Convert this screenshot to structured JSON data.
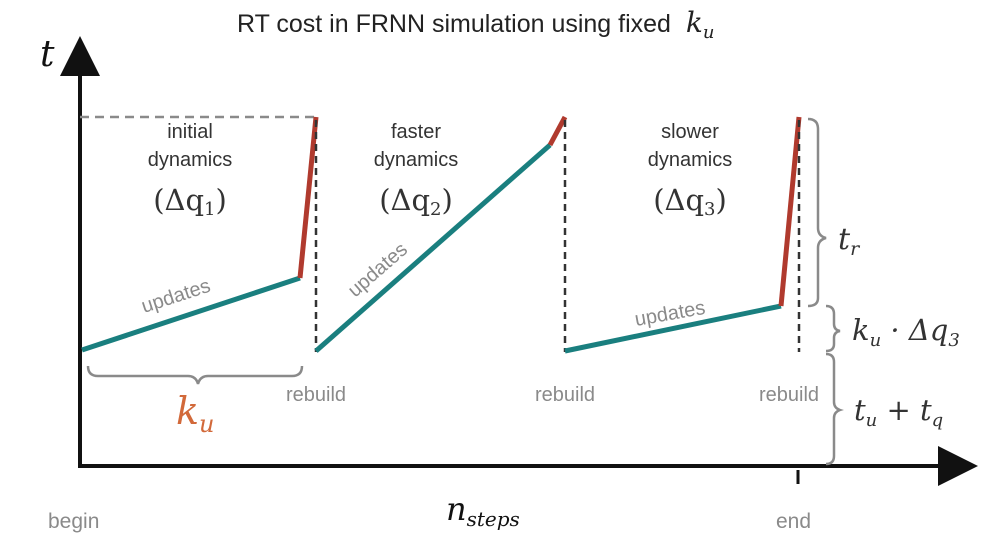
{
  "title": "RT cost in FRNN simulation using fixed",
  "title_var": "k",
  "title_var_sub": "u",
  "y_axis_label": "t",
  "x_axis_label": "n",
  "x_axis_label_sub": "steps",
  "x_begin": "begin",
  "x_end": "end",
  "colors": {
    "update": "#1a7f7f",
    "rebuild": "#b03a2e",
    "ku": "#d2693a",
    "axis": "#111111",
    "gray": "#8a8a8a"
  },
  "phases": [
    {
      "line1": "initial",
      "line2": "dynamics",
      "delta": "(Δq",
      "delta_sub": "1",
      "delta_close": ")",
      "updates": "updates",
      "rebuild": ""
    },
    {
      "line1": "faster",
      "line2": "dynamics",
      "delta": "(Δq",
      "delta_sub": "2",
      "delta_close": ")",
      "updates": "updates",
      "rebuild": "rebuild"
    },
    {
      "line1": "slower",
      "line2": "dynamics",
      "delta": "(Δq",
      "delta_sub": "3",
      "delta_close": ")",
      "updates": "updates",
      "rebuild": "rebuild"
    }
  ],
  "rebuild_first": "rebuild",
  "ku_label": "k",
  "ku_sub": "u",
  "brace_tr": {
    "var": "t",
    "sub": "r"
  },
  "brace_kdq": {
    "k": "k",
    "k_sub": "u",
    "dot": " · Δq",
    "q_sub": "3"
  },
  "brace_tutq": {
    "t1": "t",
    "t1_sub": "u",
    "plus": " + ",
    "t2": "t",
    "t2_sub": "q"
  }
}
